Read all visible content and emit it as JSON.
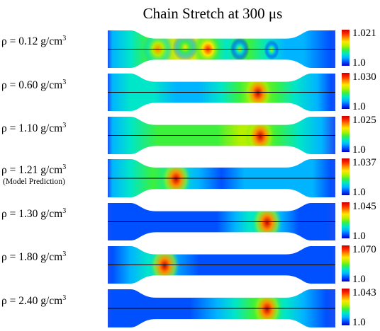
{
  "title": "Chain Stretch at 300 μs",
  "rows": [
    {
      "label": "ρ = 0.12 g/cm",
      "unit_power": "3",
      "note": "",
      "max": "1.021",
      "min": "1.0"
    },
    {
      "label": "ρ = 0.60 g/cm",
      "unit_power": "3",
      "note": "",
      "max": "1.030",
      "min": "1.0"
    },
    {
      "label": "ρ = 1.10 g/cm",
      "unit_power": "3",
      "note": "",
      "max": "1.025",
      "min": "1.0"
    },
    {
      "label": "ρ = 1.21 g/cm",
      "unit_power": "3",
      "note": "(Model Prediction)",
      "max": "1.037",
      "min": "1.0"
    },
    {
      "label": "ρ = 1.30 g/cm",
      "unit_power": "3",
      "note": "",
      "max": "1.045",
      "min": "1.0"
    },
    {
      "label": "ρ = 1.80 g/cm",
      "unit_power": "3",
      "note": "",
      "max": "1.070",
      "min": "1.0"
    },
    {
      "label": "ρ = 2.40 g/cm",
      "unit_power": "3",
      "note": "",
      "max": "1.043",
      "min": "1.0"
    }
  ],
  "colors": {
    "background_field": "#1e4cf0",
    "colormap": [
      "#0000c8",
      "#0050ff",
      "#00b4ff",
      "#00e6c8",
      "#3cf03c",
      "#b4f000",
      "#ffe600",
      "#ff8c00",
      "#ff2800",
      "#c80000"
    ]
  }
}
